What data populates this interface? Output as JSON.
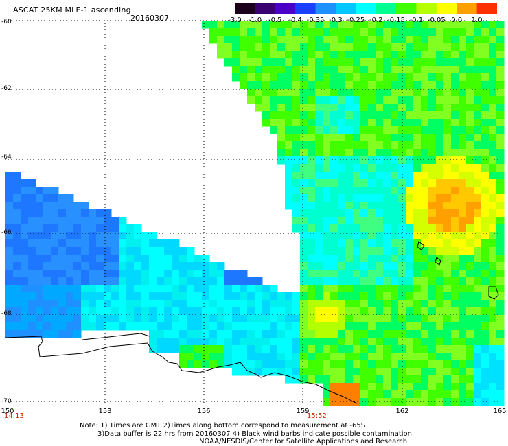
{
  "header": {
    "title": "ASCAT 25KM MLE-1 ascending",
    "date": "20160307"
  },
  "colorbar": {
    "labels": [
      "-3.0",
      "-1.0",
      "-0.5",
      "-0.4",
      "-0.35",
      "-0.3",
      "-0.25",
      "-0.2",
      "-0.15",
      "-0.1",
      "-0.05",
      "0.0",
      "1.0"
    ],
    "colors": [
      "#1a001a",
      "#3a0070",
      "#4b00c8",
      "#1a40ff",
      "#1e90ff",
      "#00c8ff",
      "#00ffff",
      "#00ff90",
      "#40ff00",
      "#b4ff00",
      "#ffff00",
      "#ffa000",
      "#ff3000"
    ]
  },
  "axes": {
    "lat_labels": [
      "-60",
      "-62",
      "-64",
      "-66",
      "-68",
      "-70"
    ],
    "lon_labels": [
      "150",
      "153",
      "156",
      "159",
      "162",
      "165"
    ]
  },
  "times": {
    "start": "14:13",
    "end": "15:52"
  },
  "notes": {
    "line1": "Note: 1) Times are GMT 2)Times along bottom correspond to measurement at -65S",
    "line2": "3)Data buffer is 22 hrs from 20160307 4) Black wind barbs indicate possible contamination",
    "line3": "NOAA/NESDIS/Center for Satellite Applications and Research"
  }
}
